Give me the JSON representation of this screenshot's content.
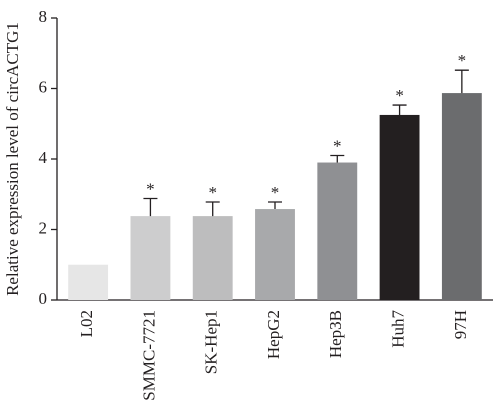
{
  "chart_data": {
    "type": "bar",
    "ylabel": "Relative expression level of circACTG1",
    "categories": [
      "L02",
      "SMMC-7721",
      "SK-Hep1",
      "HepG2",
      "Hep3B",
      "Huh7",
      "97H"
    ],
    "values": [
      1.0,
      2.38,
      2.38,
      2.58,
      3.9,
      5.25,
      5.87
    ],
    "errors": [
      0,
      0.5,
      0.4,
      0.2,
      0.2,
      0.28,
      0.65
    ],
    "significance": [
      null,
      "*",
      "*",
      "*",
      "*",
      "*",
      "*"
    ],
    "colors": [
      "#e6e6e6",
      "#cdcdce",
      "#bdbdbe",
      "#a8a9ab",
      "#8f9093",
      "#231f20",
      "#6b6c6e"
    ],
    "ylim": [
      0,
      8
    ],
    "yticks": [
      0,
      2,
      4,
      6,
      8
    ]
  }
}
